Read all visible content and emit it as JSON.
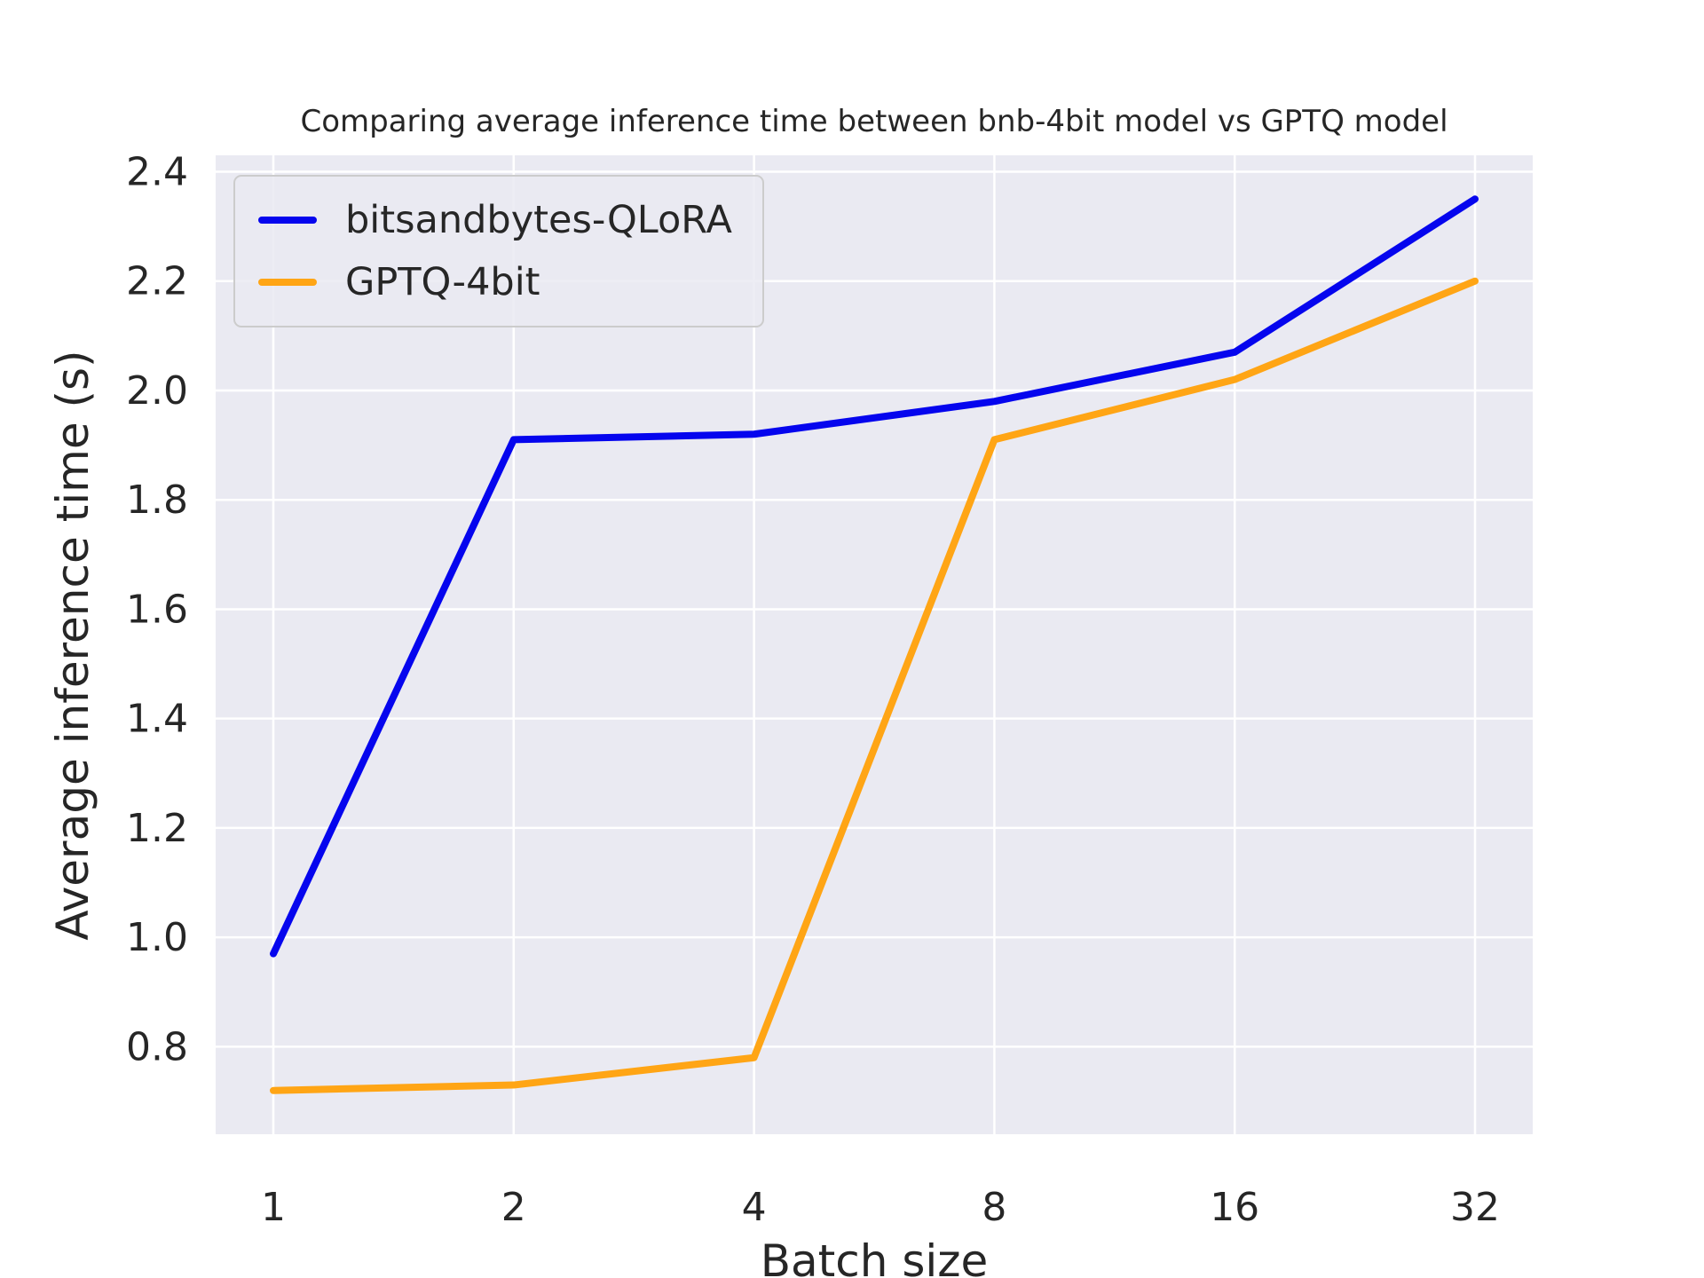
{
  "chart_data": {
    "type": "line",
    "title": "Comparing average inference time between bnb-4bit model vs GPTQ model",
    "xlabel": "Batch size",
    "ylabel": "Average inference time (s)",
    "categories": [
      "1",
      "2",
      "4",
      "8",
      "16",
      "32"
    ],
    "series": [
      {
        "name": "bitsandbytes-QLoRA",
        "color": "#0505ee",
        "values": [
          0.97,
          1.91,
          1.92,
          1.98,
          2.07,
          2.35
        ]
      },
      {
        "name": "GPTQ-4bit",
        "color": "#ffa515",
        "values": [
          0.72,
          0.73,
          0.78,
          1.91,
          2.02,
          2.2
        ]
      }
    ],
    "yticks": [
      0.8,
      1.0,
      1.2,
      1.4,
      1.6,
      1.8,
      2.0,
      2.2,
      2.4
    ],
    "ylim": [
      0.64,
      2.43
    ],
    "grid": true,
    "legend_position": "upper left",
    "styles": {
      "plot_background": "#eaeaf2",
      "grid_color": "#ffffff",
      "text_color": "#262626",
      "legend_border": "#cccccc"
    }
  }
}
